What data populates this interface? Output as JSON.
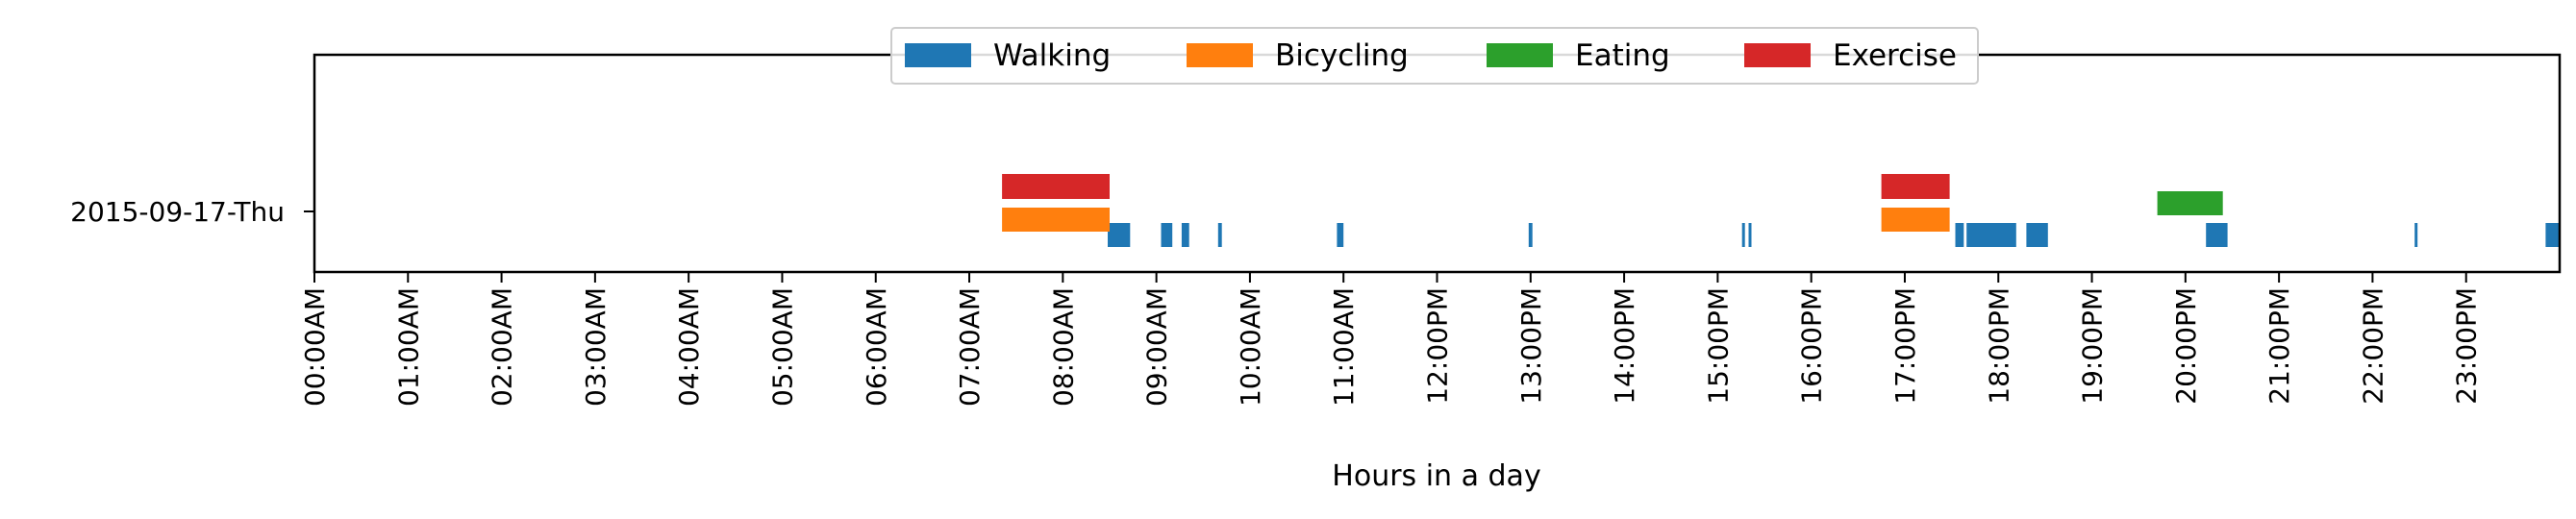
{
  "chart_data": {
    "type": "timeline",
    "xlabel": "Hours in a day",
    "ylabel": "",
    "xlim": [
      0,
      24
    ],
    "x_ticks": [
      "00:00AM",
      "01:00AM",
      "02:00AM",
      "03:00AM",
      "04:00AM",
      "05:00AM",
      "06:00AM",
      "07:00AM",
      "08:00AM",
      "09:00AM",
      "10:00AM",
      "11:00AM",
      "12:00PM",
      "13:00PM",
      "14:00PM",
      "15:00PM",
      "16:00PM",
      "17:00PM",
      "18:00PM",
      "19:00PM",
      "20:00PM",
      "21:00PM",
      "22:00PM",
      "23:00PM"
    ],
    "categories": [
      "2015-09-17-Thu"
    ],
    "legend": {
      "placement": "upper-center",
      "entries": [
        "Walking",
        "Bicycling",
        "Eating",
        "Exercise"
      ]
    },
    "grid": false,
    "series": [
      {
        "name": "Walking",
        "color": "#1f77b4",
        "lane": 0,
        "intervals": [
          [
            8.48,
            8.72
          ],
          [
            9.05,
            9.17
          ],
          [
            9.27,
            9.35
          ],
          [
            9.66,
            9.7
          ],
          [
            10.93,
            11.0
          ],
          [
            12.98,
            13.02
          ],
          [
            15.26,
            15.29
          ],
          [
            15.33,
            15.36
          ],
          [
            17.54,
            17.63
          ],
          [
            17.66,
            18.19
          ],
          [
            18.3,
            18.53
          ],
          [
            20.22,
            20.45
          ],
          [
            22.45,
            22.48
          ],
          [
            23.85,
            24.0
          ]
        ]
      },
      {
        "name": "Bicycling",
        "color": "#ff7f0e",
        "lane": 1,
        "intervals": [
          [
            7.35,
            8.5
          ],
          [
            16.75,
            17.48
          ]
        ]
      },
      {
        "name": "Exercise",
        "color": "#d62728",
        "lane": 2,
        "intervals": [
          [
            7.35,
            8.5
          ],
          [
            16.75,
            17.48
          ]
        ]
      },
      {
        "name": "Eating",
        "color": "#2ca02c",
        "lane": 1.5,
        "intervals": [
          [
            19.7,
            20.4
          ]
        ]
      }
    ]
  }
}
